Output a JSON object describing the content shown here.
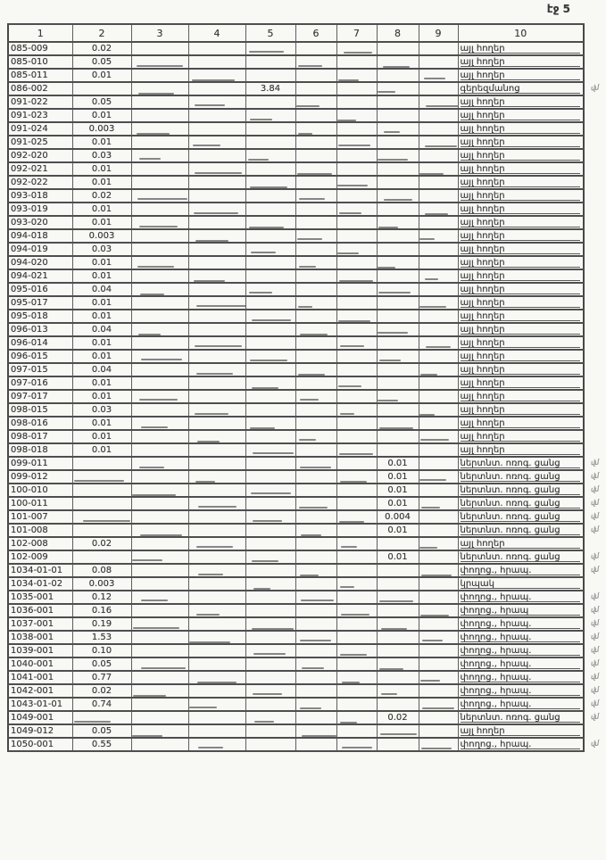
{
  "page": {
    "header_label": "էջ 5"
  },
  "table": {
    "column_headers": [
      "1",
      "2",
      "3",
      "4",
      "5",
      "6",
      "7",
      "8",
      "9",
      "10"
    ],
    "margin_mark": "վմ",
    "rows": [
      {
        "c1": "085-009",
        "c2": "0.02",
        "c5": "",
        "c8": "",
        "c10": "այլ հողեր",
        "mark": false
      },
      {
        "c1": "085-010",
        "c2": "0.05",
        "c5": "",
        "c8": "",
        "c10": "այլ հողեր",
        "mark": false
      },
      {
        "c1": "085-011",
        "c2": "0.01",
        "c5": "",
        "c8": "",
        "c10": "այլ հողեր",
        "mark": false
      },
      {
        "c1": "086-002",
        "c2": "",
        "c5": "3.84",
        "c8": "",
        "c10": "գերեզմանոց",
        "mark": true
      },
      {
        "c1": "091-022",
        "c2": "0.05",
        "c5": "",
        "c8": "",
        "c10": "այլ հողեր",
        "mark": false
      },
      {
        "c1": "091-023",
        "c2": "0.01",
        "c5": "",
        "c8": "",
        "c10": "այլ հողեր",
        "mark": false
      },
      {
        "c1": "091-024",
        "c2": "0.003",
        "c5": "",
        "c8": "",
        "c10": "այլ հողեր",
        "mark": false
      },
      {
        "c1": "091-025",
        "c2": "0.01",
        "c5": "",
        "c8": "",
        "c10": "այլ հողեր",
        "mark": false
      },
      {
        "c1": "092-020",
        "c2": "0.03",
        "c5": "",
        "c8": "",
        "c10": "այլ հողեր",
        "mark": false
      },
      {
        "c1": "092-021",
        "c2": "0.01",
        "c5": "",
        "c8": "",
        "c10": "այլ հողեր",
        "mark": false
      },
      {
        "c1": "092-022",
        "c2": "0.01",
        "c5": "",
        "c8": "",
        "c10": "այլ հողեր",
        "mark": false
      },
      {
        "c1": "093-018",
        "c2": "0.02",
        "c5": "",
        "c8": "",
        "c10": "այլ հողեր",
        "mark": false
      },
      {
        "c1": "093-019",
        "c2": "0.01",
        "c5": "",
        "c8": "",
        "c10": "այլ հողեր",
        "mark": false
      },
      {
        "c1": "093-020",
        "c2": "0.01",
        "c5": "",
        "c8": "",
        "c10": "այլ հողեր",
        "mark": false
      },
      {
        "c1": "094-018",
        "c2": "0.003",
        "c5": "",
        "c8": "",
        "c10": "այլ հողեր",
        "mark": false
      },
      {
        "c1": "094-019",
        "c2": "0.03",
        "c5": "",
        "c8": "",
        "c10": "այլ հողեր",
        "mark": false
      },
      {
        "c1": "094-020",
        "c2": "0.01",
        "c5": "",
        "c8": "",
        "c10": "այլ հողեր",
        "mark": false
      },
      {
        "c1": "094-021",
        "c2": "0.01",
        "c5": "",
        "c8": "",
        "c10": "այլ հողեր",
        "mark": false
      },
      {
        "c1": "095-016",
        "c2": "0.04",
        "c5": "",
        "c8": "",
        "c10": "այլ հողեր",
        "mark": false
      },
      {
        "c1": "095-017",
        "c2": "0.01",
        "c5": "",
        "c8": "",
        "c10": "այլ հողեր",
        "mark": false
      },
      {
        "c1": "095-018",
        "c2": "0.01",
        "c5": "",
        "c8": "",
        "c10": "այլ հողեր",
        "mark": false
      },
      {
        "c1": "096-013",
        "c2": "0.04",
        "c5": "",
        "c8": "",
        "c10": "այլ հողեր",
        "mark": false
      },
      {
        "c1": "096-014",
        "c2": "0.01",
        "c5": "",
        "c8": "",
        "c10": "այլ հողեր",
        "mark": false
      },
      {
        "c1": "096-015",
        "c2": "0.01",
        "c5": "",
        "c8": "",
        "c10": "այլ հողեր",
        "mark": false
      },
      {
        "c1": "097-015",
        "c2": "0.04",
        "c5": "",
        "c8": "",
        "c10": "այլ հողեր",
        "mark": false
      },
      {
        "c1": "097-016",
        "c2": "0.01",
        "c5": "",
        "c8": "",
        "c10": "այլ հողեր",
        "mark": false
      },
      {
        "c1": "097-017",
        "c2": "0.01",
        "c5": "",
        "c8": "",
        "c10": "այլ հողեր",
        "mark": false
      },
      {
        "c1": "098-015",
        "c2": "0.03",
        "c5": "",
        "c8": "",
        "c10": "այլ հողեր",
        "mark": false
      },
      {
        "c1": "098-016",
        "c2": "0.01",
        "c5": "",
        "c8": "",
        "c10": "այլ հողեր",
        "mark": false
      },
      {
        "c1": "098-017",
        "c2": "0.01",
        "c5": "",
        "c8": "",
        "c10": "այլ հողեր",
        "mark": false
      },
      {
        "c1": "098-018",
        "c2": "0.01",
        "c5": "",
        "c8": "",
        "c10": "այլ հողեր",
        "mark": false
      },
      {
        "c1": "099-011",
        "c2": "",
        "c5": "",
        "c8": "0.01",
        "c10": "ներտնտ. ոռոգ. ցանց",
        "mark": true
      },
      {
        "c1": "099-012",
        "c2": "",
        "c5": "",
        "c8": "0.01",
        "c10": "ներտնտ. ոռոգ. ցանց",
        "mark": true
      },
      {
        "c1": "100-010",
        "c2": "",
        "c5": "",
        "c8": "0.01",
        "c10": "ներտնտ. ոռոգ. ցանց",
        "mark": true
      },
      {
        "c1": "100-011",
        "c2": "",
        "c5": "",
        "c8": "0.01",
        "c10": "ներտնտ. ոռոգ. ցանց",
        "mark": true
      },
      {
        "c1": "101-007",
        "c2": "",
        "c5": "",
        "c8": "0.004",
        "c10": "ներտնտ. ոռոգ. ցանց",
        "mark": true
      },
      {
        "c1": "101-008",
        "c2": "",
        "c5": "",
        "c8": "0.01",
        "c10": "ներտնտ. ոռոգ. ցանց",
        "mark": true
      },
      {
        "c1": "102-008",
        "c2": "0.02",
        "c5": "",
        "c8": "",
        "c10": "այլ հողեր",
        "mark": false
      },
      {
        "c1": "102-009",
        "c2": "",
        "c5": "",
        "c8": "0.01",
        "c10": "ներտնտ. ոռոգ. ցանց",
        "mark": true
      },
      {
        "c1": "1034-01-01",
        "c2": "0.08",
        "c5": "",
        "c8": "",
        "c10": "փողոց., հրապ.",
        "mark": true
      },
      {
        "c1": "1034-01-02",
        "c2": "0.003",
        "c5": "",
        "c8": "",
        "c10": "կրպակ",
        "mark": false
      },
      {
        "c1": "1035-001",
        "c2": "0.12",
        "c5": "",
        "c8": "",
        "c10": "փողոց., հրապ.",
        "mark": true
      },
      {
        "c1": "1036-001",
        "c2": "0.16",
        "c5": "",
        "c8": "",
        "c10": "փողոց., հրապ",
        "mark": true
      },
      {
        "c1": "1037-001",
        "c2": "0.19",
        "c5": "",
        "c8": "",
        "c10": "փողոց., հրապ.",
        "mark": true
      },
      {
        "c1": "1038-001",
        "c2": "1.53",
        "c5": "",
        "c8": "",
        "c10": "փողոց., հրապ.",
        "mark": true
      },
      {
        "c1": "1039-001",
        "c2": "0.10",
        "c5": "",
        "c8": "",
        "c10": "փողոց., հրապ.",
        "mark": true
      },
      {
        "c1": "1040-001",
        "c2": "0.05",
        "c5": "",
        "c8": "",
        "c10": "փողոց., հրապ.",
        "mark": true
      },
      {
        "c1": "1041-001",
        "c2": "0.77",
        "c5": "",
        "c8": "",
        "c10": "փողոց., հրապ.",
        "mark": true
      },
      {
        "c1": "1042-001",
        "c2": "0.02",
        "c5": "",
        "c8": "",
        "c10": "փողոց., հրապ.",
        "mark": true
      },
      {
        "c1": "1043-01-01",
        "c2": "0.74",
        "c5": "",
        "c8": "",
        "c10": "փողոց., հրապ.",
        "mark": true
      },
      {
        "c1": "1049-001",
        "c2": "",
        "c5": "",
        "c8": "0.02",
        "c10": "ներտնտ. ոռոգ. ցանց",
        "mark": true
      },
      {
        "c1": "1049-012",
        "c2": "0.05",
        "c5": "",
        "c8": "",
        "c10": "այլ հողեր",
        "mark": false
      },
      {
        "c1": "1050-001",
        "c2": "0.55",
        "c5": "",
        "c8": "",
        "c10": "փողոց., հրապ.",
        "mark": true
      }
    ]
  }
}
